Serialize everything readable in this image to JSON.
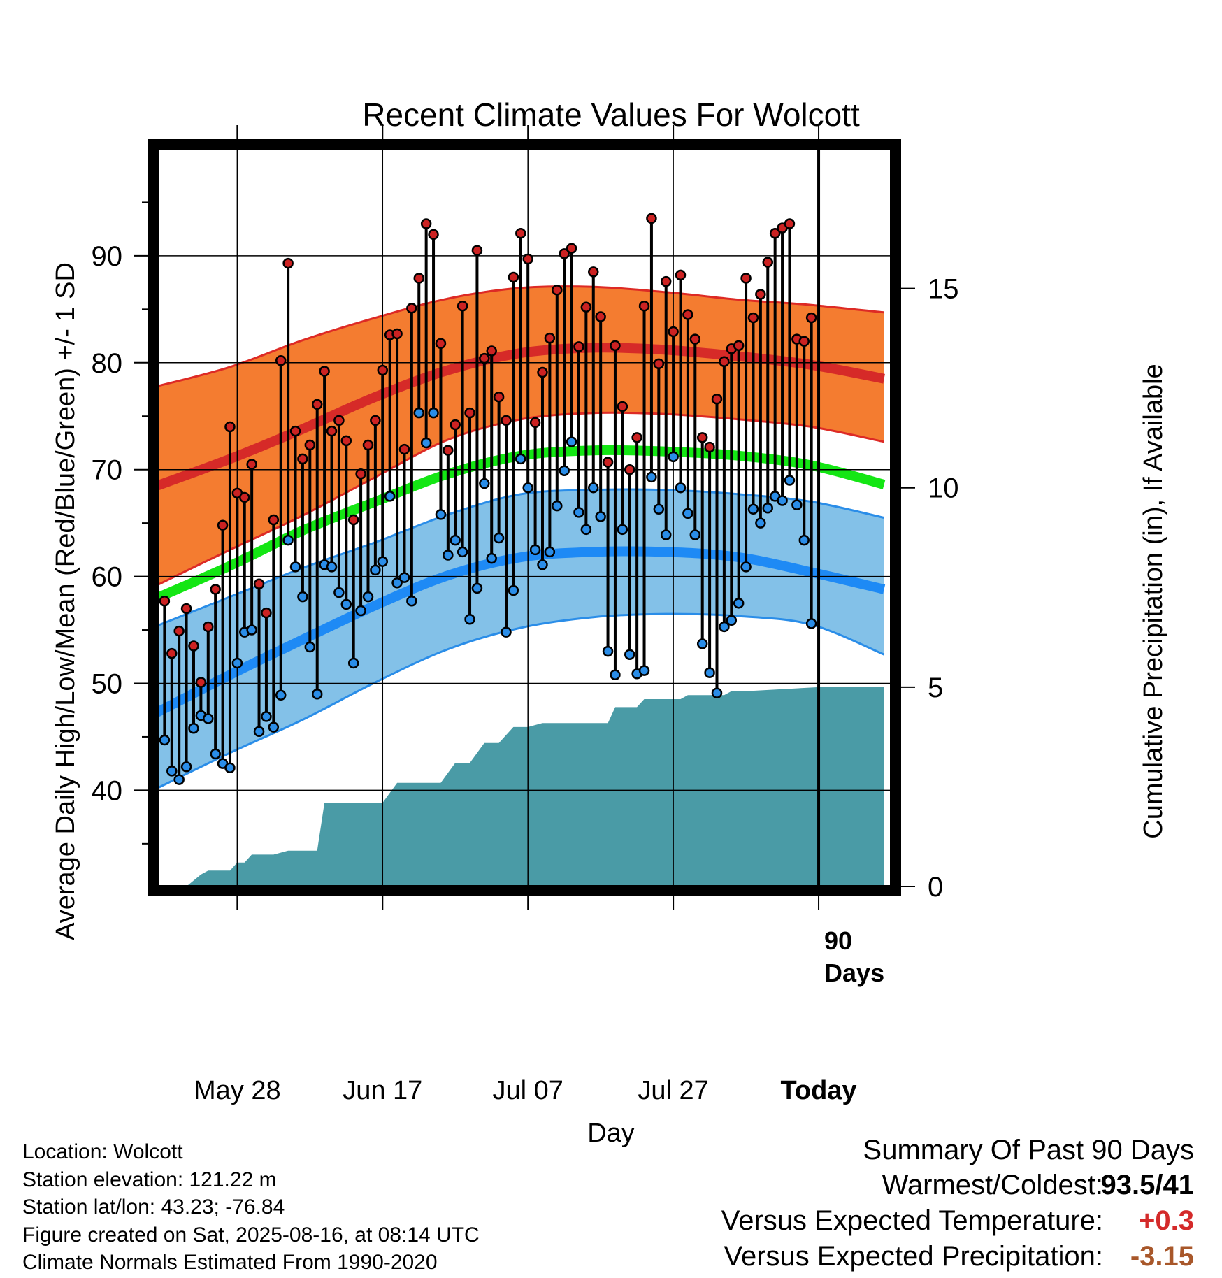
{
  "chart_data": {
    "type": "line",
    "title": "Recent Climate Values For Wolcott",
    "xlabel": "Day",
    "ylabel": "Average Daily High/Low/Mean (Red/Blue/Green) +/- 1 SD",
    "y2label": "Cumulative Precipitation (in), If Available",
    "ylim": [
      31,
      100
    ],
    "y2lim": [
      0,
      18.5
    ],
    "yticks": [
      40,
      50,
      60,
      70,
      80,
      90
    ],
    "y2ticks": [
      0,
      5,
      10,
      15
    ],
    "xlim": [
      -11,
      90
    ],
    "xticks": [
      {
        "day": 0,
        "label": "May 28"
      },
      {
        "day": 20,
        "label": "Jun 17"
      },
      {
        "day": 40,
        "label": "Jul 07"
      },
      {
        "day": 60,
        "label": "Jul 27"
      },
      {
        "day": 80,
        "label": "Today"
      }
    ],
    "today_day": 80,
    "window_label": "90\nDays",
    "grid": true,
    "colors": {
      "high_band": "#f47c30",
      "high_edge": "#dd2a25",
      "high_mean": "#d62a28",
      "low_band": "#83c1e8",
      "low_edge": "#2a8de8",
      "low_mean": "#1e8af5",
      "mean": "#14e614",
      "precip": "#4a9ba6",
      "high_dot": "#cc2222",
      "low_dot": "#2a8de8"
    },
    "normals": {
      "days": [
        -11,
        -1,
        9,
        19,
        29,
        39,
        49,
        59,
        69,
        79,
        89
      ],
      "high_upper": [
        77.8,
        79.6,
        82.1,
        84.2,
        86.0,
        87.0,
        87.1,
        86.6,
        85.9,
        85.4,
        84.7
      ],
      "high_mean": [
        68.5,
        71.0,
        73.8,
        76.8,
        79.3,
        80.9,
        81.4,
        81.2,
        80.6,
        79.8,
        78.5
      ],
      "high_lower": [
        59.2,
        62.5,
        65.7,
        69.3,
        72.8,
        74.7,
        75.3,
        75.2,
        74.7,
        74.0,
        72.6
      ],
      "mean": [
        58.0,
        61.0,
        64.3,
        67.0,
        69.6,
        71.3,
        71.8,
        71.7,
        71.3,
        70.4,
        68.6
      ],
      "low_upper": [
        55.4,
        58.1,
        60.8,
        63.2,
        65.8,
        67.7,
        68.1,
        68.1,
        67.7,
        67.0,
        65.5
      ],
      "low_mean": [
        47.3,
        50.8,
        54.1,
        57.3,
        60.1,
        61.8,
        62.3,
        62.3,
        61.8,
        60.4,
        58.8
      ],
      "low_lower": [
        40.2,
        43.5,
        46.6,
        50.1,
        53.2,
        55.2,
        56.2,
        56.5,
        56.3,
        55.5,
        52.7
      ]
    },
    "daily": {
      "start_day": -10,
      "high": [
        57.7,
        52.8,
        54.9,
        57.0,
        53.5,
        50.1,
        55.3,
        58.8,
        64.8,
        74.0,
        67.8,
        67.4,
        70.5,
        59.3,
        56.6,
        65.3,
        80.2,
        89.3,
        73.6,
        71.0,
        72.3,
        76.1,
        79.2,
        73.6,
        74.6,
        72.7,
        65.3,
        69.6,
        72.3,
        74.6,
        79.3,
        82.6,
        82.7,
        71.9,
        85.1,
        87.9,
        93.0,
        92.0,
        81.8,
        71.8,
        74.2,
        85.3,
        75.3,
        90.5,
        80.4,
        81.1,
        76.8,
        74.6,
        88.0,
        92.1,
        89.7,
        74.4,
        79.1,
        82.3,
        86.8,
        90.2,
        90.7,
        81.5,
        85.2,
        88.5,
        84.3,
        70.7,
        81.6,
        75.9,
        70.0,
        73.0,
        85.3,
        93.5,
        79.9,
        87.6,
        82.9,
        88.2,
        84.5,
        82.2,
        73.0,
        72.1,
        76.6,
        80.1,
        81.3,
        81.6,
        87.9,
        84.2,
        86.4,
        89.4,
        92.1,
        92.6,
        93.0,
        82.2,
        82.0,
        84.2
      ],
      "low": [
        44.7,
        41.8,
        41.0,
        42.2,
        45.8,
        47.0,
        46.7,
        43.4,
        42.5,
        42.1,
        51.9,
        54.8,
        55.0,
        45.5,
        46.9,
        45.9,
        48.9,
        63.4,
        60.9,
        58.1,
        53.4,
        49.0,
        61.1,
        60.9,
        58.5,
        57.4,
        51.9,
        56.8,
        58.1,
        60.6,
        61.4,
        67.5,
        59.4,
        59.9,
        57.7,
        75.3,
        72.5,
        75.3,
        65.8,
        62.0,
        63.4,
        62.3,
        56.0,
        58.9,
        68.7,
        61.7,
        63.6,
        54.8,
        58.7,
        71.0,
        68.3,
        62.5,
        61.1,
        62.3,
        66.6,
        69.9,
        72.6,
        66.0,
        64.4,
        68.3,
        65.6,
        53.0,
        50.8,
        64.4,
        52.7,
        50.9,
        51.2,
        69.3,
        66.3,
        63.9,
        71.2,
        68.3,
        65.9,
        63.9,
        53.7,
        51.0,
        49.1,
        55.3,
        55.9,
        57.5,
        60.9,
        66.3,
        65.0,
        66.4,
        67.5,
        67.1,
        69.0,
        66.7,
        63.4,
        55.6
      ]
    },
    "precip_cum": {
      "days": [
        -11,
        -7,
        -5,
        -4,
        -3,
        -1,
        0,
        1,
        2,
        3,
        4,
        5,
        7,
        11,
        12,
        13,
        15,
        20,
        22,
        24,
        28,
        30,
        32,
        34,
        36,
        38,
        40,
        42,
        44,
        46,
        48,
        51,
        52,
        55,
        56,
        61,
        62,
        67,
        68,
        70,
        80,
        89
      ],
      "values": [
        0.0,
        0.0,
        0.3,
        0.4,
        0.4,
        0.4,
        0.6,
        0.6,
        0.8,
        0.8,
        0.8,
        0.8,
        0.9,
        0.9,
        2.1,
        2.1,
        2.1,
        2.1,
        2.6,
        2.6,
        2.6,
        3.1,
        3.1,
        3.6,
        3.6,
        4.0,
        4.0,
        4.1,
        4.1,
        4.1,
        4.1,
        4.1,
        4.5,
        4.5,
        4.7,
        4.7,
        4.8,
        4.8,
        4.9,
        4.9,
        5.0,
        5.0
      ]
    }
  },
  "footer": {
    "location": "Location: Wolcott",
    "elevation": "Station elevation: 121.22 m",
    "latlon": "Station lat/lon: 43.23; -76.84",
    "created": "Figure created on Sat, 2025-08-16, at 08:14 UTC",
    "normals": "Climate Normals Estimated From 1990-2020"
  },
  "summary": {
    "title": "Summary Of Past 90 Days",
    "rows": [
      {
        "label": "Warmest/Coldest:",
        "value": "93.5/41",
        "color": "#000000"
      },
      {
        "label": "Versus Expected Temperature:",
        "value": "+0.3",
        "color": "#d42a2a"
      },
      {
        "label": "Versus Expected Precipitation:",
        "value": "-3.15",
        "color": "#a8572a"
      }
    ]
  }
}
